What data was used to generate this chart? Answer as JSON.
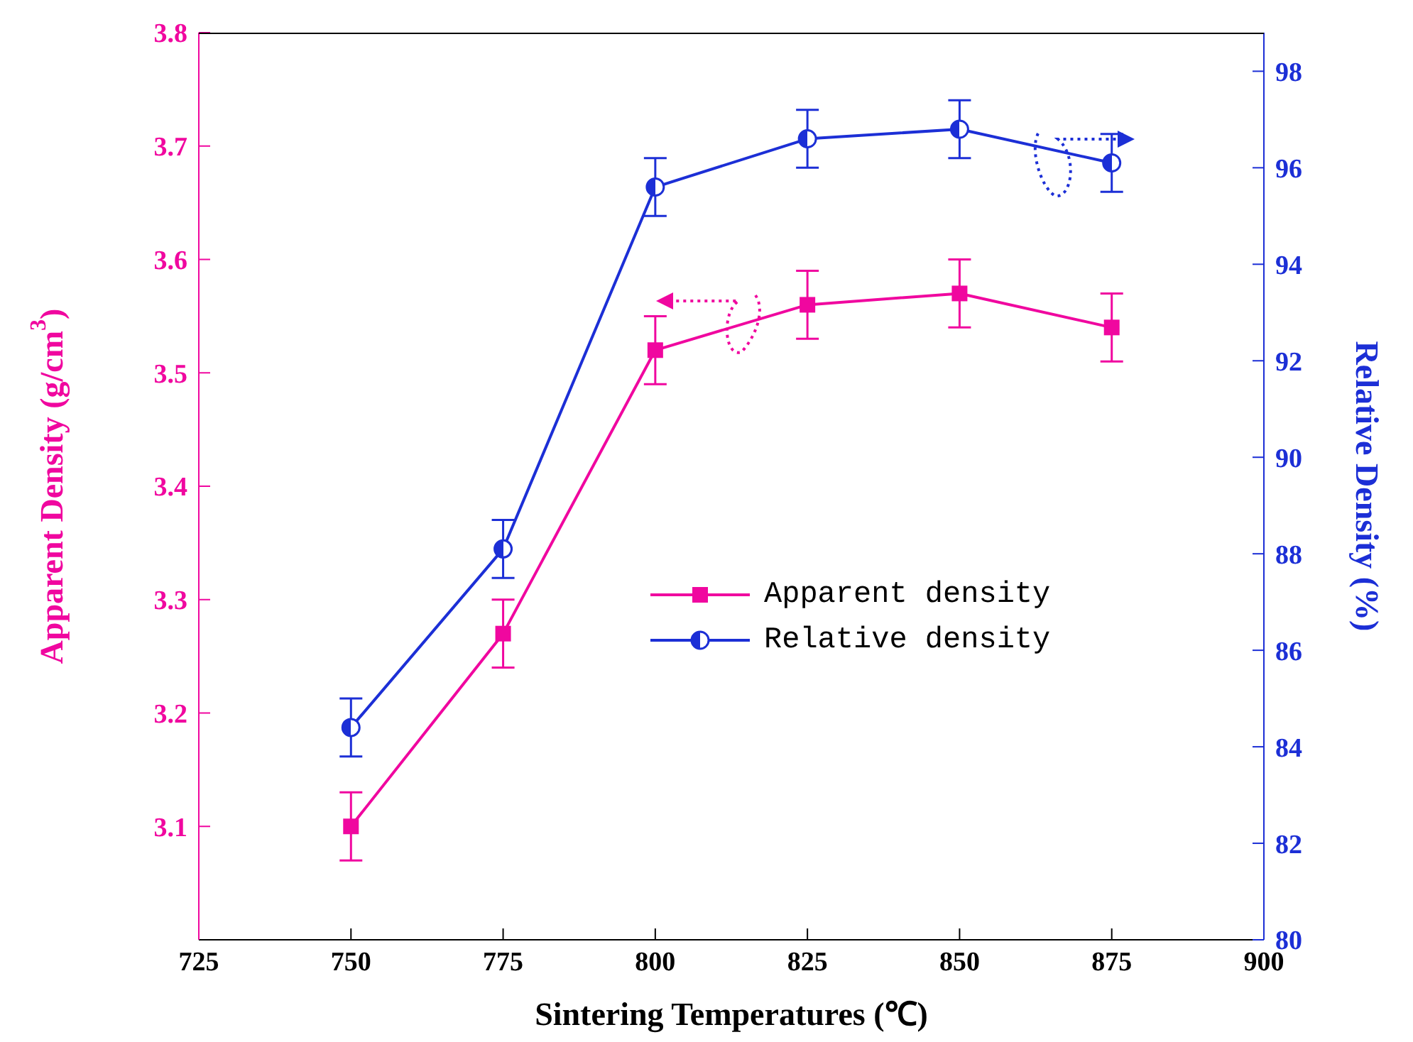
{
  "chart_data": {
    "type": "line",
    "xlabel": "Sintering Temperatures (℃)",
    "ylabel": "Apparent Density (g/cm$^{3}$)",
    "y2label": "Relative Density (%)",
    "x": [
      750,
      775,
      800,
      825,
      850,
      875
    ],
    "series": [
      {
        "name": "Apparent density",
        "color": "#f0079f",
        "values": [
          3.1,
          3.27,
          3.52,
          3.56,
          3.57,
          3.54
        ],
        "errors": [
          0.03,
          0.03,
          0.03,
          0.03,
          0.03,
          0.03
        ],
        "marker": "square"
      },
      {
        "name": "Relative density",
        "color": "#1c2fd6",
        "axis": "y2",
        "values": [
          84.4,
          88.1,
          95.6,
          96.6,
          96.8,
          96.1
        ],
        "errors": [
          0.6,
          0.6,
          0.6,
          0.6,
          0.6,
          0.6
        ],
        "marker": "circle"
      }
    ],
    "xlim": [
      725,
      900
    ],
    "xticks": [
      725,
      750,
      775,
      800,
      825,
      850,
      875,
      900
    ],
    "ylim": [
      3.0,
      3.8
    ],
    "yticks": [
      3.1,
      3.2,
      3.3,
      3.4,
      3.5,
      3.6,
      3.7,
      3.8
    ],
    "y2lim": [
      80,
      98.8
    ],
    "y2ticks": [
      80,
      82,
      84,
      86,
      88,
      90,
      92,
      94,
      96,
      98
    ],
    "legend": "center",
    "line_style": "solid"
  }
}
